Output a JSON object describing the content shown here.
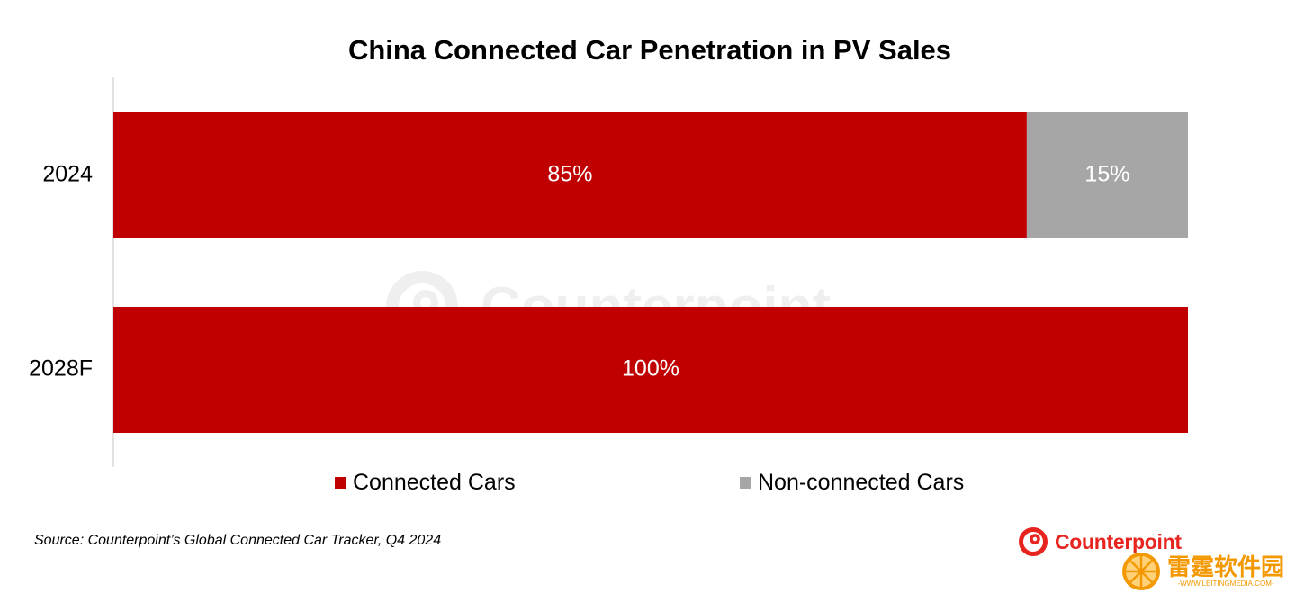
{
  "chart_data": {
    "type": "bar",
    "orientation": "horizontal",
    "stacked": true,
    "title": "China Connected Car Penetration in PV Sales",
    "categories": [
      "2024",
      "2028F"
    ],
    "series": [
      {
        "name": "Connected Cars",
        "values": [
          85,
          100
        ],
        "labels": [
          "85%",
          "100%"
        ],
        "color": "#C00000"
      },
      {
        "name": "Non-connected Cars",
        "values": [
          15,
          0
        ],
        "labels": [
          "15%",
          ""
        ],
        "color": "#A6A6A6"
      }
    ],
    "xlim": [
      0,
      100
    ],
    "grid": false,
    "legend_position": "bottom"
  },
  "source_note": "Source: Counterpoint’s Global Connected Car Tracker, Q4 2024",
  "brand": {
    "name": "Counterpoint",
    "color": "#E8241F",
    "icon": "counterpoint-logo-icon"
  },
  "watermark_bottom": {
    "title": "雷霆软件园",
    "url": "-WWW.LEITINGMEDIA.COM-",
    "icon": "orange-slice-icon",
    "color": "#F39800"
  },
  "watermark_background": {
    "text": "Counterpoint"
  }
}
